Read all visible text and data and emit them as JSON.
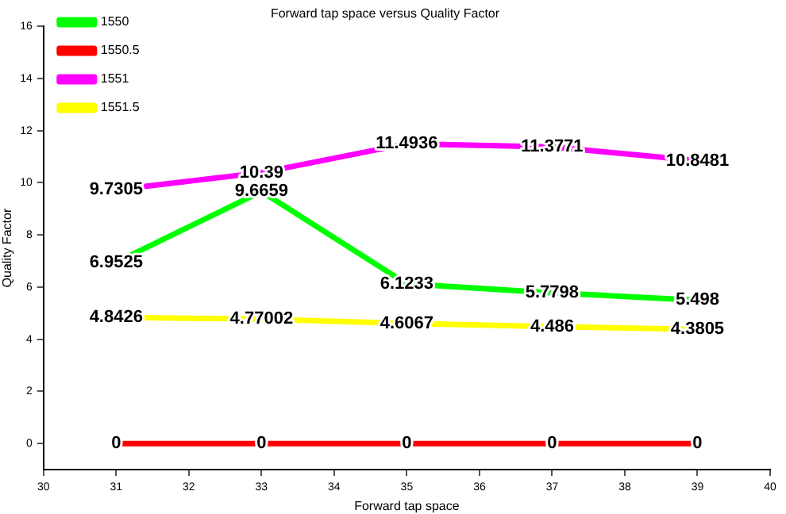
{
  "chart_data": {
    "type": "line",
    "title": "Forward tap space versus Quality Factor",
    "xlabel": "Forward tap space",
    "ylabel": "Quality Factor",
    "x": [
      31,
      33,
      35,
      37,
      39
    ],
    "series": [
      {
        "name": "1550",
        "color": "#00ff00",
        "values": [
          6.9525,
          9.6659,
          6.1233,
          5.7798,
          5.498
        ]
      },
      {
        "name": "1550.5",
        "color": "#ff0000",
        "values": [
          0,
          0,
          0,
          0,
          0
        ]
      },
      {
        "name": "1551",
        "color": "#ff00ff",
        "values": [
          9.7305,
          10.39,
          11.4936,
          11.3771,
          10.8481
        ]
      },
      {
        "name": "1551.5",
        "color": "#ffff00",
        "values": [
          4.8426,
          4.77002,
          4.6067,
          4.486,
          4.3805
        ]
      }
    ],
    "xlim": [
      30,
      40
    ],
    "xticks": [
      30,
      31,
      32,
      33,
      34,
      35,
      36,
      37,
      38,
      39,
      40
    ],
    "ylim": [
      -1,
      16
    ],
    "yticks": [
      0,
      2,
      4,
      6,
      8,
      10,
      12,
      14,
      16
    ],
    "grid": false,
    "legend": "top left",
    "marker": "none",
    "line_style": "solid",
    "data_labels": true
  }
}
